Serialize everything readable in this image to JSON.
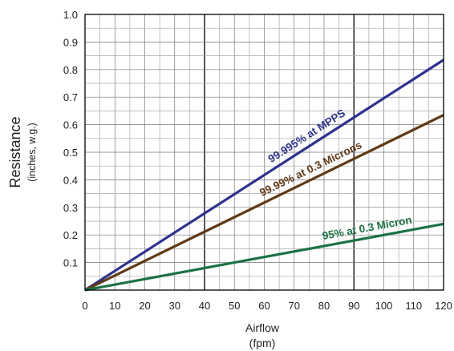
{
  "chart_data": {
    "type": "line",
    "title": "",
    "xlabel": "Airflow",
    "xlabel_unit": "(fpm)",
    "ylabel": "Resistance",
    "ylabel_unit": "(inches, w.g.)",
    "xlim": [
      0,
      120
    ],
    "ylim": [
      0,
      1.0
    ],
    "x_ticks": [
      "0",
      "10",
      "20",
      "30",
      "40",
      "50",
      "60",
      "70",
      "80",
      "90",
      "100",
      "110",
      "120"
    ],
    "y_ticks": [
      "0.1",
      "0.2",
      "0.3",
      "0.4",
      "0.5",
      "0.6",
      "0.7",
      "0.8",
      "0.9",
      "1.0"
    ],
    "grid": true,
    "legend": "none (labels on lines)",
    "series": [
      {
        "name": "99.995% at MPPS",
        "color": "#2e3192",
        "x": [
          0,
          120
        ],
        "y": [
          0,
          0.835
        ]
      },
      {
        "name": "99.99% at 0.3 Microns",
        "color": "#603913",
        "x": [
          0,
          120
        ],
        "y": [
          0,
          0.635
        ]
      },
      {
        "name": "95% at 0.3 Micron",
        "color": "#1a7343",
        "x": [
          0,
          120
        ],
        "y": [
          0,
          0.24
        ]
      }
    ]
  }
}
